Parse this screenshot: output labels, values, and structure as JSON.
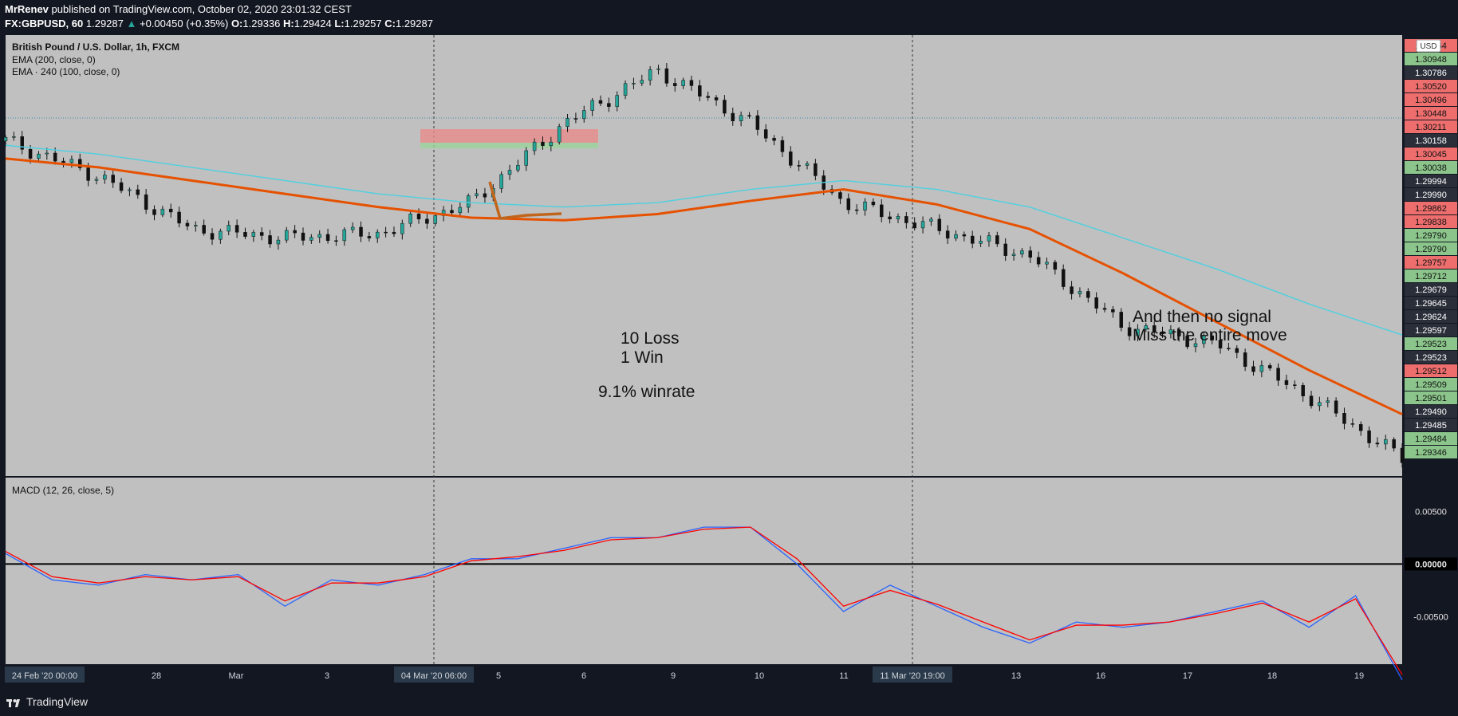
{
  "header": {
    "author": "MrRenev",
    "published_text": "published on TradingView.com, October 02, 2020 23:01:32 CEST",
    "symbol": "FX:GBPUSD, 60",
    "last": "1.29287",
    "change": "+0.00450 (+0.35%)",
    "o_label": "O:",
    "o": "1.29336",
    "h_label": "H:",
    "h": "1.29424",
    "l_label": "L:",
    "l": "1.29257",
    "c_label": "C:",
    "c": "1.29287"
  },
  "legend": {
    "title": "British Pound / U.S. Dollar, 1h, FXCM",
    "ema1": "EMA (200, close, 0)",
    "ema2": "EMA · 240 (100, close, 0)",
    "macd": "MACD (12, 26, close, 5)"
  },
  "currency_badge": "USD",
  "annotations": {
    "loss": "10 Loss",
    "win": "1 Win",
    "winrate": "9.1% winrate",
    "nosignal_1": "And then no signal",
    "nosignal_2": "Miss the entire move"
  },
  "footer": {
    "brand": "TradingView"
  },
  "colors": {
    "background": "#c0c0c0",
    "frame": "#131722",
    "up": "#26a69a",
    "down": "#ef5350",
    "ema_200": "#e65100",
    "ema_240": "#4dd0e1",
    "macd": "#2962ff",
    "signal": "#ff0000",
    "drawing": "#c0651c"
  },
  "chart_data": [
    {
      "type": "line",
      "title": "British Pound / U.S. Dollar, 1h, FXCM",
      "x_ticks": [
        "24 Feb '20  00:00",
        "28",
        "Mar",
        "3",
        "04 Mar '20  06:00",
        "5",
        "6",
        "9",
        "10",
        "11",
        "11 Mar '20  19:00",
        "13",
        "16",
        "17",
        "18",
        "19"
      ],
      "y_price_labels": [
        {
          "v": "1.30964",
          "kind": "down"
        },
        {
          "v": "1.30948",
          "kind": "up"
        },
        {
          "v": "1.30786",
          "kind": "dark"
        },
        {
          "v": "1.30520",
          "kind": "down"
        },
        {
          "v": "1.30496",
          "kind": "down"
        },
        {
          "v": "1.30448",
          "kind": "down"
        },
        {
          "v": "1.30211",
          "kind": "down"
        },
        {
          "v": "1.30158",
          "kind": "dark"
        },
        {
          "v": "1.30045",
          "kind": "down"
        },
        {
          "v": "1.30038",
          "kind": "up"
        },
        {
          "v": "1.29994",
          "kind": "dark"
        },
        {
          "v": "1.29990",
          "kind": "dark"
        },
        {
          "v": "1.29862",
          "kind": "down"
        },
        {
          "v": "1.29838",
          "kind": "down"
        },
        {
          "v": "1.29790",
          "kind": "up"
        },
        {
          "v": "1.29790",
          "kind": "up"
        },
        {
          "v": "1.29757",
          "kind": "down"
        },
        {
          "v": "1.29712",
          "kind": "up"
        },
        {
          "v": "1.29679",
          "kind": "dark"
        },
        {
          "v": "1.29645",
          "kind": "dark"
        },
        {
          "v": "1.29624",
          "kind": "dark"
        },
        {
          "v": "1.29597",
          "kind": "dark"
        },
        {
          "v": "1.29523",
          "kind": "up"
        },
        {
          "v": "1.29523",
          "kind": "dark"
        },
        {
          "v": "1.29512",
          "kind": "down"
        },
        {
          "v": "1.29509",
          "kind": "up"
        },
        {
          "v": "1.29501",
          "kind": "up"
        },
        {
          "v": "1.29490",
          "kind": "dark"
        },
        {
          "v": "1.29485",
          "kind": "dark"
        },
        {
          "v": "1.29484",
          "kind": "up"
        },
        {
          "v": "1.29346",
          "kind": "up"
        }
      ],
      "series": [
        {
          "name": "EMA (200, close, 0)",
          "values": [
            1.296,
            1.295,
            1.2935,
            1.292,
            1.2905,
            1.2893,
            1.289,
            1.2897,
            1.2912,
            1.2925,
            1.2908,
            1.288,
            1.283,
            1.2775,
            1.272,
            1.267
          ]
        },
        {
          "name": "EMA · 240 (100, close, 0)",
          "values": [
            1.2975,
            1.2965,
            1.295,
            1.2935,
            1.292,
            1.291,
            1.2905,
            1.291,
            1.2925,
            1.2935,
            1.2925,
            1.2905,
            1.287,
            1.2835,
            1.2795,
            1.276
          ]
        }
      ],
      "close": [
        1.298,
        1.294,
        1.288,
        1.287,
        1.2875,
        1.291,
        1.3,
        1.306,
        1.3,
        1.291,
        1.288,
        1.285,
        1.277,
        1.275,
        1.269,
        1.262
      ]
    },
    {
      "type": "line",
      "title": "MACD (12, 26, close, 5)",
      "x": [
        0,
        1,
        2,
        3,
        4,
        5,
        6,
        7,
        8,
        9,
        10,
        11,
        12,
        13,
        14,
        15,
        16,
        17,
        18,
        19,
        20,
        21,
        22,
        23,
        24,
        25,
        26,
        27,
        28,
        29,
        30
      ],
      "y_ticks": [
        "0.00500",
        "0.00000",
        "-0.00500"
      ],
      "ylim": [
        -0.0095,
        0.0082
      ],
      "series": [
        {
          "name": "MACD",
          "values": [
            0.001,
            -0.0015,
            -0.002,
            -0.001,
            -0.0015,
            -0.001,
            -0.004,
            -0.0015,
            -0.002,
            -0.001,
            0.0005,
            0.0005,
            0.0015,
            0.0025,
            0.0025,
            0.0035,
            0.0035,
            0.0,
            -0.0045,
            -0.002,
            -0.004,
            -0.006,
            -0.0075,
            -0.0055,
            -0.006,
            -0.0055,
            -0.0045,
            -0.0035,
            -0.006,
            -0.003,
            -0.011
          ]
        },
        {
          "name": "Signal",
          "values": [
            0.0012,
            -0.0012,
            -0.0018,
            -0.0012,
            -0.0015,
            -0.0012,
            -0.0035,
            -0.0018,
            -0.0018,
            -0.0012,
            0.0003,
            0.0007,
            0.0013,
            0.0023,
            0.0025,
            0.0033,
            0.0035,
            0.0005,
            -0.004,
            -0.0025,
            -0.0038,
            -0.0055,
            -0.0072,
            -0.0058,
            -0.0058,
            -0.0055,
            -0.0047,
            -0.0037,
            -0.0055,
            -0.0033,
            -0.0105
          ]
        }
      ]
    }
  ]
}
